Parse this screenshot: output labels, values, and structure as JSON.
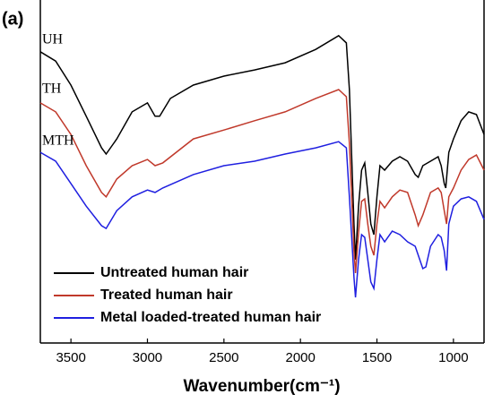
{
  "chart_data": {
    "type": "line",
    "panel_label": "(a)",
    "x_label": "Wavenumber(cm⁻¹)",
    "xlim": [
      3700,
      800
    ],
    "xticks": [
      3500,
      3000,
      2500,
      2000,
      1500,
      1000
    ],
    "ylim": [
      0,
      100
    ],
    "legend": "lower left",
    "annotations": [
      {
        "text": "UH"
      },
      {
        "text": "TH"
      },
      {
        "text": "MTH"
      }
    ],
    "series": [
      {
        "name": "Untreated human hair",
        "color": "#000000",
        "x": [
          3700,
          3600,
          3500,
          3400,
          3300,
          3270,
          3200,
          3100,
          3000,
          2950,
          2920,
          2850,
          2700,
          2500,
          2300,
          2100,
          1900,
          1750,
          1700,
          1680,
          1650,
          1640,
          1620,
          1600,
          1580,
          1560,
          1540,
          1520,
          1500,
          1480,
          1450,
          1400,
          1350,
          1300,
          1250,
          1230,
          1200,
          1150,
          1100,
          1080,
          1060,
          1050,
          1030,
          1000,
          950,
          900,
          850,
          800
        ],
        "values": [
          84.9,
          82.2,
          75.2,
          66.1,
          56.9,
          55.1,
          59.5,
          67.4,
          70.0,
          66.1,
          66.1,
          71.3,
          75.2,
          77.8,
          79.6,
          81.7,
          85.6,
          89.6,
          87.5,
          73.9,
          34.7,
          24.3,
          39.9,
          50.4,
          52.5,
          43.9,
          34.7,
          31.6,
          42.6,
          51.7,
          50.4,
          53.0,
          54.3,
          53.0,
          49.1,
          48.3,
          51.7,
          53.0,
          54.3,
          51.7,
          46.5,
          45.2,
          55.6,
          59.5,
          64.8,
          67.4,
          66.6,
          60.8
        ]
      },
      {
        "name": "Treated human hair",
        "color": "#c0392b",
        "x": [
          3700,
          3600,
          3500,
          3400,
          3300,
          3270,
          3200,
          3100,
          3000,
          2950,
          2900,
          2700,
          2500,
          2300,
          2100,
          1900,
          1750,
          1700,
          1680,
          1650,
          1640,
          1620,
          1600,
          1580,
          1560,
          1540,
          1520,
          1500,
          1480,
          1450,
          1400,
          1350,
          1300,
          1250,
          1230,
          1200,
          1150,
          1100,
          1080,
          1060,
          1045,
          1030,
          1000,
          950,
          900,
          850,
          800
        ],
        "values": [
          70.0,
          67.4,
          60.8,
          51.7,
          43.9,
          42.6,
          47.8,
          51.7,
          53.5,
          51.7,
          52.5,
          59.5,
          62.1,
          64.8,
          67.4,
          71.3,
          73.9,
          71.8,
          58.2,
          26.9,
          20.4,
          32.1,
          41.3,
          42.0,
          34.7,
          28.2,
          25.6,
          34.7,
          41.3,
          39.4,
          42.6,
          44.6,
          43.9,
          37.3,
          34.2,
          37.3,
          43.9,
          45.2,
          43.9,
          38.6,
          34.7,
          42.6,
          45.2,
          50.4,
          53.5,
          54.8,
          50.4
        ]
      },
      {
        "name": "Metal loaded-treated human hair",
        "color": "#1f1fe0",
        "x": [
          3700,
          3600,
          3500,
          3400,
          3300,
          3270,
          3200,
          3100,
          3000,
          2950,
          2900,
          2700,
          2500,
          2300,
          2100,
          1900,
          1750,
          1700,
          1680,
          1650,
          1640,
          1620,
          1600,
          1580,
          1560,
          1540,
          1520,
          1500,
          1480,
          1450,
          1400,
          1350,
          1300,
          1250,
          1200,
          1180,
          1150,
          1100,
          1080,
          1060,
          1045,
          1030,
          1000,
          950,
          900,
          850,
          800
        ],
        "values": [
          55.6,
          53.0,
          46.5,
          39.9,
          34.2,
          33.4,
          38.6,
          42.6,
          44.6,
          43.9,
          45.2,
          49.1,
          51.7,
          53.0,
          55.1,
          56.9,
          58.7,
          56.9,
          42.6,
          19.1,
          13.3,
          24.3,
          31.6,
          30.8,
          24.3,
          17.8,
          15.9,
          24.3,
          31.6,
          29.5,
          32.6,
          31.6,
          29.5,
          28.2,
          21.7,
          22.2,
          28.2,
          31.6,
          30.8,
          26.9,
          21.1,
          34.7,
          39.9,
          42.0,
          42.6,
          41.3,
          36.0
        ]
      }
    ]
  }
}
